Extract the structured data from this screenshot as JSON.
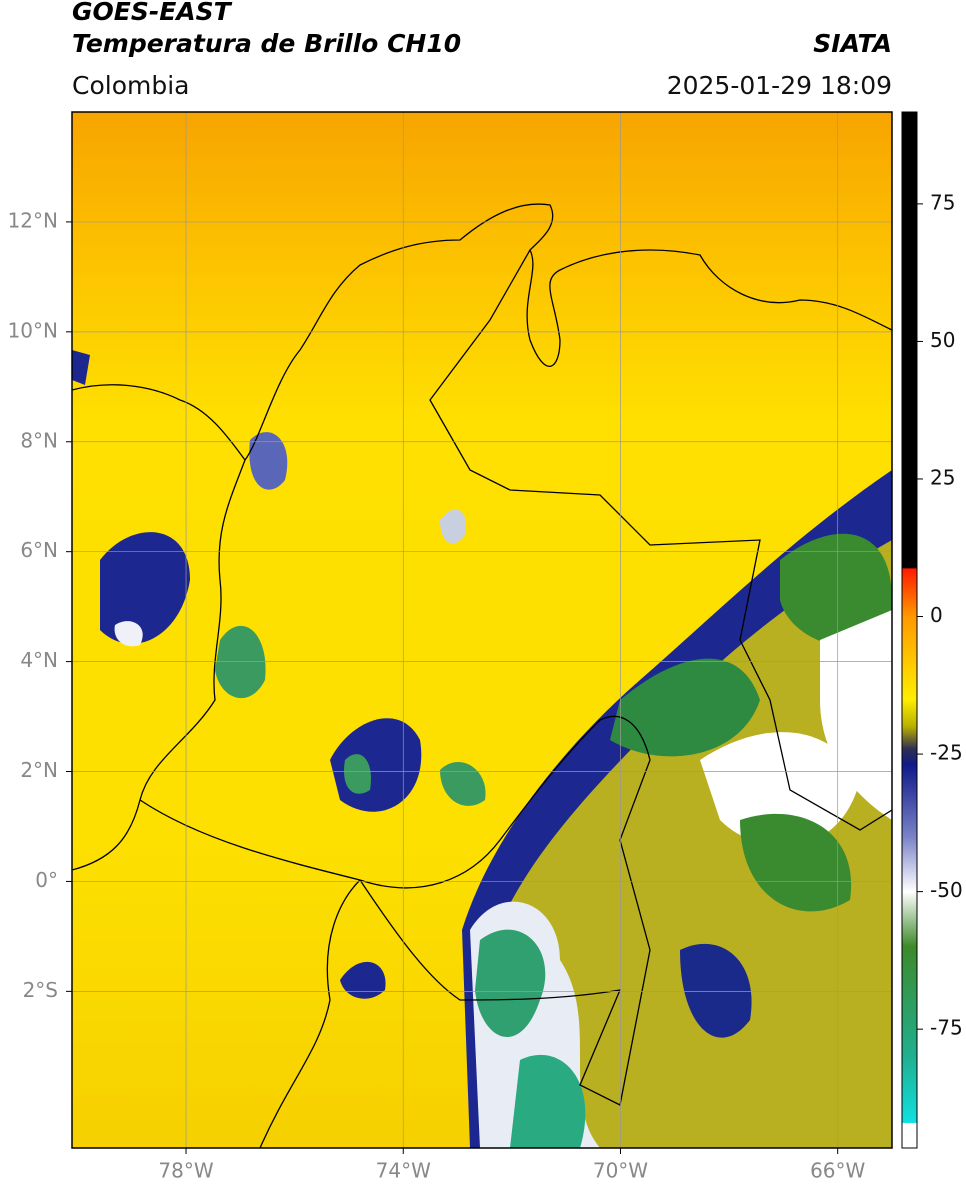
{
  "header": {
    "satellite": "GOES-EAST",
    "product": "Temperatura de Brillo CH10",
    "organization": "SIATA",
    "region": "Colombia",
    "timestamp": "2025-01-29 18:09"
  },
  "map": {
    "xlim": [
      -80.1,
      -65
    ],
    "ylim": [
      -4.85,
      14
    ],
    "xticks": [
      {
        "value": -78,
        "label": "78°W"
      },
      {
        "value": -74,
        "label": "74°W"
      },
      {
        "value": -70,
        "label": "70°W"
      },
      {
        "value": -66,
        "label": "66°W"
      }
    ],
    "yticks": [
      {
        "value": 12,
        "label": "12°N"
      },
      {
        "value": 10,
        "label": "10°N"
      },
      {
        "value": 8,
        "label": "8°N"
      },
      {
        "value": 6,
        "label": "6°N"
      },
      {
        "value": 4,
        "label": "4°N"
      },
      {
        "value": 2,
        "label": "2°N"
      },
      {
        "value": 0,
        "label": "0°"
      },
      {
        "value": -2,
        "label": "2°S"
      }
    ],
    "grid": true
  },
  "colorbar": {
    "lim": [
      -96.6,
      91.7
    ],
    "ticks": [
      75,
      50,
      25,
      0,
      -25,
      -50,
      -75
    ],
    "colormap": [
      {
        "value": 91.7,
        "color": "#000000"
      },
      {
        "value": 8.8,
        "color": "#000000"
      },
      {
        "value": 8.7,
        "color": "#ff1a00"
      },
      {
        "value": 0,
        "color": "#ff9900"
      },
      {
        "value": -15,
        "color": "#ffee00"
      },
      {
        "value": -20,
        "color": "#b8b000"
      },
      {
        "value": -24,
        "color": "#303050"
      },
      {
        "value": -27,
        "color": "#101a8a"
      },
      {
        "value": -40,
        "color": "#7a82c8"
      },
      {
        "value": -50,
        "color": "#ffffff"
      },
      {
        "value": -60,
        "color": "#3d8a2a"
      },
      {
        "value": -80,
        "color": "#20b090"
      },
      {
        "value": -92,
        "color": "#10e0e0"
      },
      {
        "value": -92.1,
        "color": "#ffffff"
      },
      {
        "value": -96.6,
        "color": "#ffffff"
      }
    ]
  }
}
